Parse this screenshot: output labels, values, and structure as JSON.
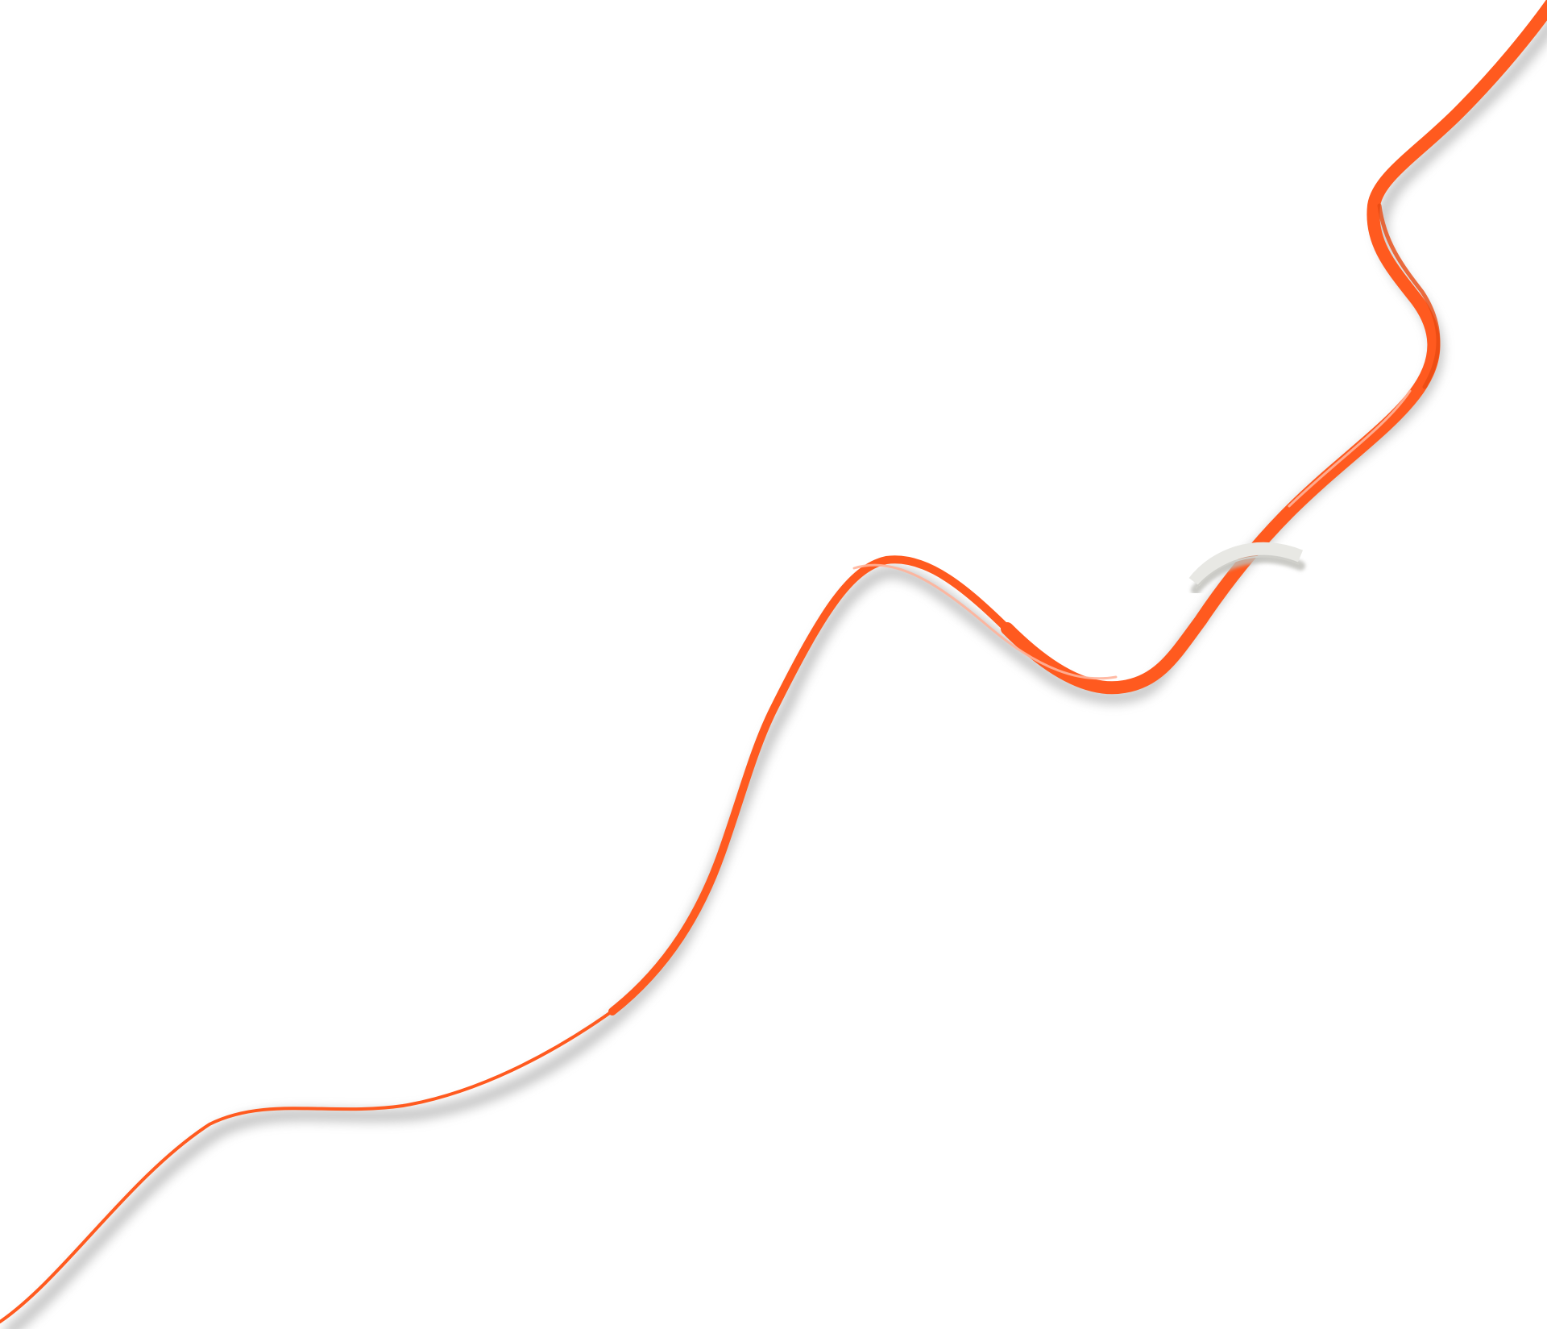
{
  "illustration": {
    "background_color": "#ffffff",
    "ribbon_color": "#ff5a1f",
    "ribbon_highlight_color": "#ffb39a",
    "ribbon_shadow_color": "#8a8a8a",
    "clip_color": "#e8e8e4",
    "clip_shadow_color": "#bdbdb8"
  }
}
